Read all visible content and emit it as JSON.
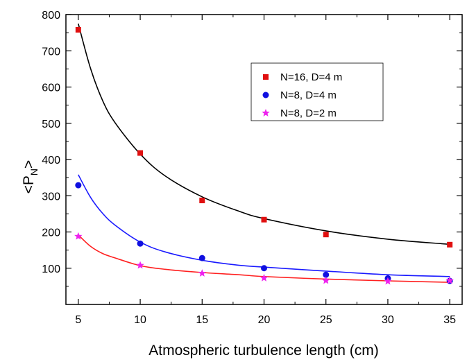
{
  "chart_data": {
    "type": "scatter",
    "xlabel": "Atmospheric turbulence length (cm)",
    "ylabel": {
      "main": "<P",
      "sub": "N",
      "close": ">"
    },
    "xlim": [
      4,
      36
    ],
    "ylim": [
      0,
      800
    ],
    "xticks": [
      5,
      10,
      15,
      20,
      25,
      30,
      35
    ],
    "yticks": [
      100,
      200,
      300,
      400,
      500,
      600,
      700,
      800
    ],
    "grid": false,
    "legend_position": "top-right",
    "series": [
      {
        "name": "N=16, D=4 m",
        "marker": "square",
        "marker_color": "#e01010",
        "x": [
          5,
          10,
          15,
          20,
          25,
          35
        ],
        "y": [
          758,
          418,
          287,
          234,
          193,
          165
        ],
        "fit_color": "#000000",
        "fit": {
          "x": [
            5,
            6,
            7,
            8,
            10,
            12,
            15,
            18,
            20,
            25,
            30,
            35
          ],
          "y": [
            775,
            650,
            560,
            500,
            415,
            355,
            297,
            257,
            237,
            203,
            180,
            166
          ]
        }
      },
      {
        "name": "N=8, D=4 m",
        "marker": "circle",
        "marker_color": "#1010e0",
        "x": [
          5,
          10,
          15,
          20,
          25,
          30,
          35
        ],
        "y": [
          329,
          168,
          128,
          100,
          82,
          72,
          65
        ],
        "fit_color": "#1a1aff",
        "fit": {
          "x": [
            5,
            6,
            7,
            8,
            10,
            12,
            15,
            18,
            20,
            25,
            30,
            35
          ],
          "y": [
            358,
            295,
            250,
            218,
            172,
            145,
            122,
            108,
            103,
            92,
            82,
            77
          ]
        }
      },
      {
        "name": "N=8, D=2 m",
        "marker": "star",
        "marker_color": "#ee22ee",
        "x": [
          5,
          10,
          15,
          20,
          25,
          30,
          35
        ],
        "y": [
          188,
          108,
          86,
          73,
          66,
          64,
          66
        ],
        "fit_color": "#ff2020",
        "fit": {
          "x": [
            5,
            6,
            7,
            8,
            10,
            12,
            15,
            18,
            20,
            25,
            30,
            35
          ],
          "y": [
            192,
            160,
            140,
            128,
            107,
            97,
            88,
            82,
            77,
            70,
            65,
            61
          ]
        }
      }
    ]
  }
}
